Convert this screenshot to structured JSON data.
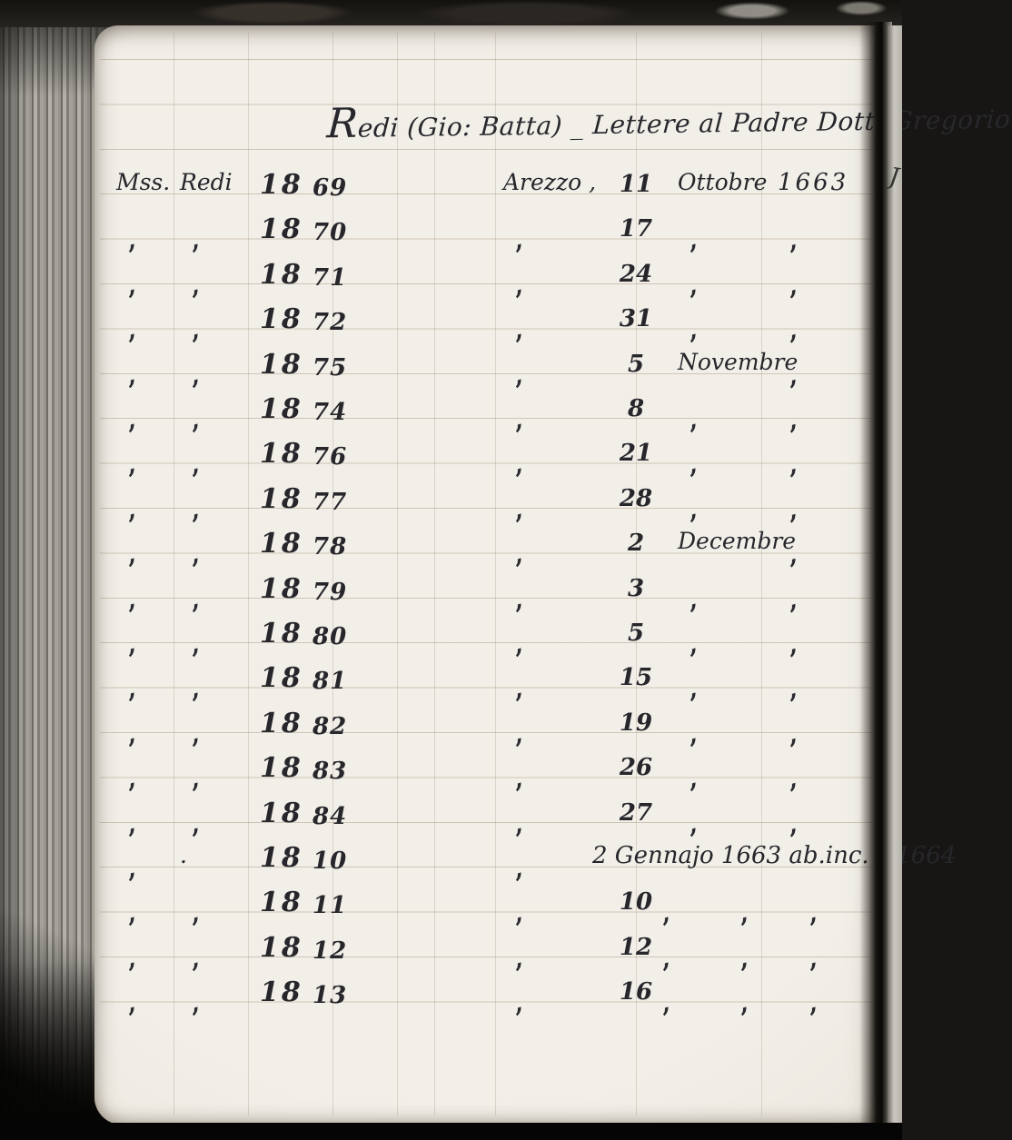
{
  "scan": {
    "title": "Redi (Gio: Batta) _ Lettere al Padre Dott. Gregorio",
    "facing_page_mark": "J",
    "table": {
      "ditto_mark": "‚",
      "rows": [
        {
          "mss": "Mss.",
          "redi": "Redi",
          "shelf": "18",
          "num": "69",
          "place": "Arezzo ,",
          "day": "11",
          "month": "Ottobre",
          "year": "1663"
        },
        {
          "mss": "‚",
          "redi": "‚",
          "shelf": "18",
          "num": "70",
          "place": "‚",
          "day": "17",
          "month": "‚",
          "year": "‚"
        },
        {
          "mss": "‚",
          "redi": "‚",
          "shelf": "18",
          "num": "71",
          "place": "‚",
          "day": "24",
          "month": "‚",
          "year": "‚"
        },
        {
          "mss": "‚",
          "redi": "‚",
          "shelf": "18",
          "num": "72",
          "place": "‚",
          "day": "31",
          "month": "‚",
          "year": "‚"
        },
        {
          "mss": "‚",
          "redi": "‚",
          "shelf": "18",
          "num": "75",
          "place": "‚",
          "day": "5",
          "month": "Novembre",
          "year": "‚"
        },
        {
          "mss": "‚",
          "redi": "‚",
          "shelf": "18",
          "num": "74",
          "place": "‚",
          "day": "8",
          "month": "‚",
          "year": "‚"
        },
        {
          "mss": "‚",
          "redi": "‚",
          "shelf": "18",
          "num": "76",
          "place": "‚",
          "day": "21",
          "month": "‚",
          "year": "‚"
        },
        {
          "mss": "‚",
          "redi": "‚",
          "shelf": "18",
          "num": "77",
          "place": "‚",
          "day": "28",
          "month": "‚",
          "year": "‚"
        },
        {
          "mss": "‚",
          "redi": "‚",
          "shelf": "18",
          "num": "78",
          "place": "‚",
          "day": "2",
          "month": "Decembre",
          "year": "‚"
        },
        {
          "mss": "‚",
          "redi": "‚",
          "shelf": "18",
          "num": "79",
          "place": "‚",
          "day": "3",
          "month": "‚",
          "year": "‚"
        },
        {
          "mss": "‚",
          "redi": "‚",
          "shelf": "18",
          "num": "80",
          "place": "‚",
          "day": "5",
          "month": "‚",
          "year": "‚"
        },
        {
          "mss": "‚",
          "redi": "‚",
          "shelf": "18",
          "num": "81",
          "place": "‚",
          "day": "15",
          "month": "‚",
          "year": "‚"
        },
        {
          "mss": "‚",
          "redi": "‚",
          "shelf": "18",
          "num": "82",
          "place": "‚",
          "day": "19",
          "month": "‚",
          "year": "‚"
        },
        {
          "mss": "‚",
          "redi": "‚",
          "shelf": "18",
          "num": "83",
          "place": "‚",
          "day": "26",
          "month": "‚",
          "year": "‚"
        },
        {
          "mss": "‚",
          "redi": "‚",
          "shelf": "18",
          "num": "84",
          "place": "‚",
          "day": "27",
          "month": "‚",
          "year": "‚"
        },
        {
          "mss": "‚",
          "redi": ".",
          "shelf": "18",
          "num": "10",
          "place": "‚",
          "span": "2 Gennajo 1663 ab.inc. _ 1664"
        },
        {
          "mss": "‚",
          "redi": "‚",
          "shelf": "18",
          "num": "11",
          "place": "‚",
          "day": "10",
          "extras": [
            "‚",
            "‚",
            "‚",
            "‚"
          ]
        },
        {
          "mss": "‚",
          "redi": "‚",
          "shelf": "18",
          "num": "12",
          "place": "‚",
          "day": "12",
          "extras": [
            "‚",
            "‚",
            "‚",
            "‚"
          ]
        },
        {
          "mss": "‚",
          "redi": "‚",
          "shelf": "18",
          "num": "13",
          "place": "‚",
          "day": "16",
          "extras": [
            "‚",
            "‚",
            "‚",
            "‚"
          ]
        }
      ]
    }
  }
}
